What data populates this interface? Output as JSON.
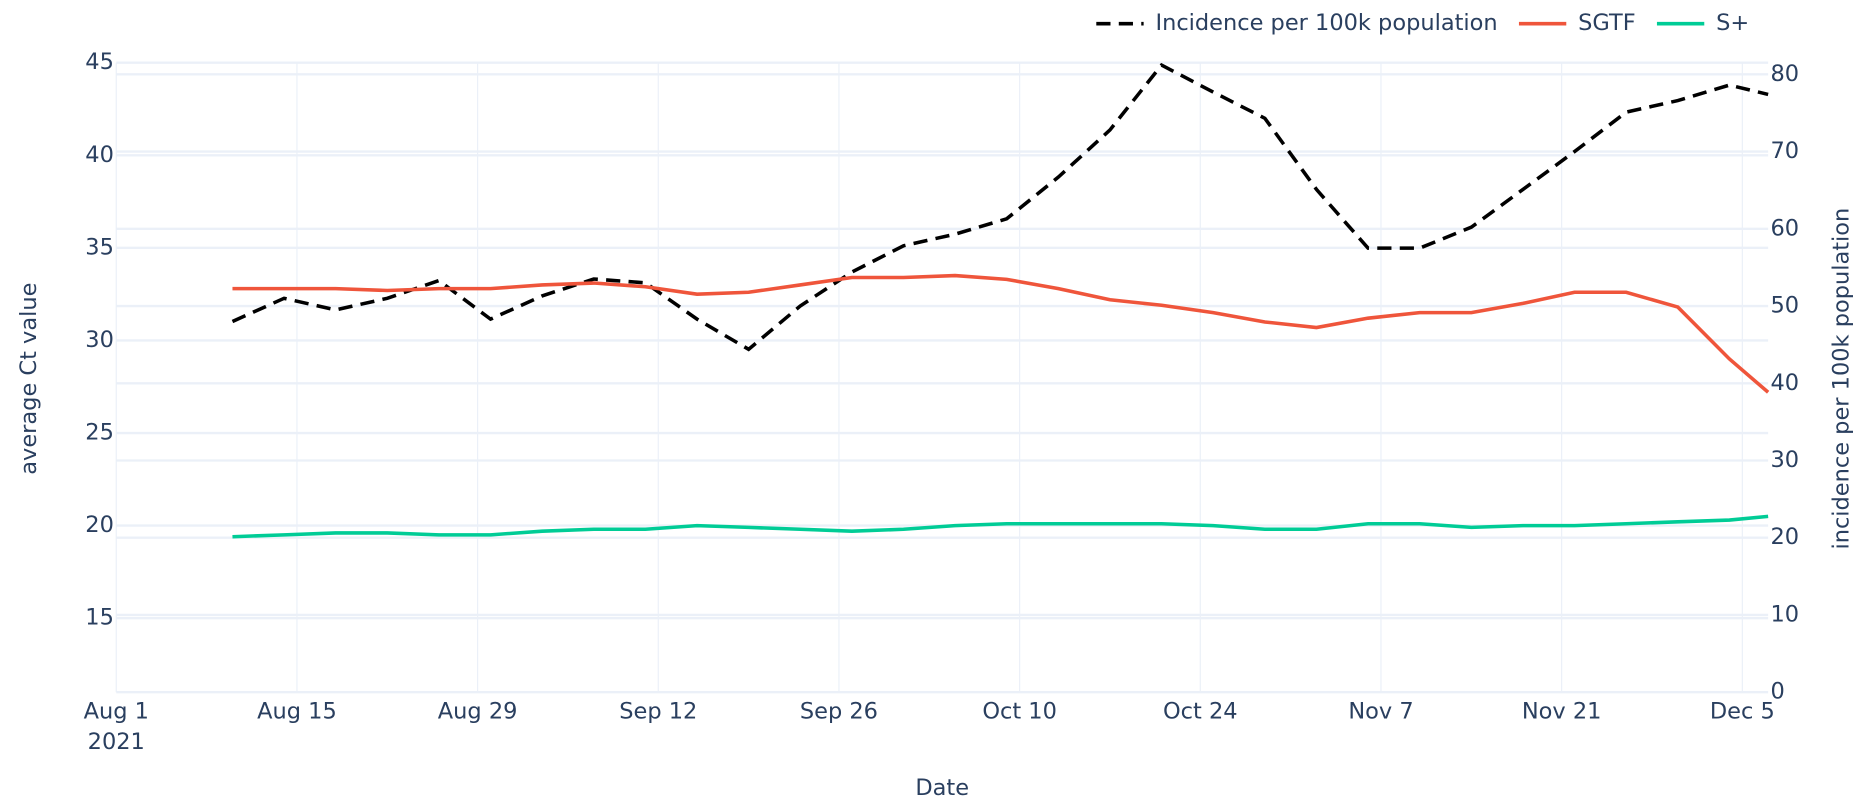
{
  "chart_data": {
    "type": "line",
    "x_label": "Date",
    "y_label": "average Ct value",
    "y2_label": "incidence per 100k population",
    "x": [
      "2021-08-10",
      "2021-08-14",
      "2021-08-18",
      "2021-08-22",
      "2021-08-26",
      "2021-08-30",
      "2021-09-03",
      "2021-09-07",
      "2021-09-11",
      "2021-09-15",
      "2021-09-19",
      "2021-09-23",
      "2021-09-27",
      "2021-10-01",
      "2021-10-05",
      "2021-10-09",
      "2021-10-13",
      "2021-10-17",
      "2021-10-21",
      "2021-10-25",
      "2021-10-29",
      "2021-11-02",
      "2021-11-06",
      "2021-11-10",
      "2021-11-14",
      "2021-11-18",
      "2021-11-22",
      "2021-11-26",
      "2021-11-30",
      "2021-12-04",
      "2021-12-07"
    ],
    "series": [
      {
        "name": "Incidence per 100k population",
        "color": "#000000",
        "dash": true,
        "axis": "y2",
        "values": [
          48,
          51,
          49.5,
          51,
          53.3,
          48.3,
          51.3,
          53.5,
          53,
          48.3,
          44.4,
          50,
          54.4,
          57.8,
          59.3,
          61.3,
          66.7,
          72.8,
          81.2,
          77.7,
          74.3,
          65.1,
          57.5,
          57.5,
          60.2,
          65.1,
          70,
          75.1,
          76.6,
          78.6,
          77.4
        ]
      },
      {
        "name": "SGTF",
        "color": "#EF553B",
        "values": [
          32.8,
          32.8,
          32.8,
          32.7,
          32.8,
          32.8,
          33.0,
          33.1,
          32.9,
          32.5,
          32.6,
          33.0,
          33.4,
          33.4,
          33.5,
          33.3,
          32.8,
          32.2,
          31.9,
          31.5,
          31.0,
          30.7,
          31.2,
          31.5,
          31.5,
          32.0,
          32.6,
          32.6,
          31.8,
          29.0,
          27.2
        ]
      },
      {
        "name": "S+",
        "color": "#00CC96",
        "values": [
          19.4,
          19.5,
          19.6,
          19.6,
          19.5,
          19.5,
          19.7,
          19.8,
          19.8,
          20.0,
          19.9,
          19.8,
          19.7,
          19.8,
          20.0,
          20.1,
          20.1,
          20.1,
          20.1,
          20.0,
          19.8,
          19.8,
          20.1,
          20.1,
          19.9,
          20.0,
          20.0,
          20.1,
          20.2,
          20.3,
          20.5
        ]
      }
    ],
    "xlim": [
      "2021-08-01",
      "2021-12-07"
    ],
    "xticks": [
      {
        "value": "2021-08-01",
        "label": "Aug 1\n2021"
      },
      {
        "value": "2021-08-15",
        "label": "Aug 15"
      },
      {
        "value": "2021-08-29",
        "label": "Aug 29"
      },
      {
        "value": "2021-09-12",
        "label": "Sep 12"
      },
      {
        "value": "2021-09-26",
        "label": "Sep 26"
      },
      {
        "value": "2021-10-10",
        "label": "Oct 10"
      },
      {
        "value": "2021-10-24",
        "label": "Oct 24"
      },
      {
        "value": "2021-11-07",
        "label": "Nov 7"
      },
      {
        "value": "2021-11-21",
        "label": "Nov 21"
      },
      {
        "value": "2021-12-05",
        "label": "Dec 5"
      }
    ],
    "ylim": [
      11,
      45
    ],
    "yticks": [
      15,
      20,
      25,
      30,
      35,
      40,
      45
    ],
    "y2lim": [
      0,
      81.5
    ],
    "y2ticks": [
      0,
      10,
      20,
      30,
      40,
      50,
      60,
      70,
      80
    ],
    "grid": true,
    "legend": "top-right"
  }
}
